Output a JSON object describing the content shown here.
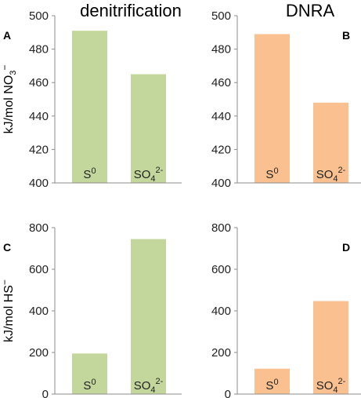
{
  "chart_data": [
    {
      "panel": "A",
      "title": "denitrification",
      "type": "bar",
      "categories": [
        "S0",
        "SO42-"
      ],
      "values": [
        491,
        465
      ],
      "ylim": [
        400,
        500
      ],
      "yticks": [
        400,
        420,
        440,
        460,
        480,
        500
      ],
      "ylabel": "kJ/mol NO3−",
      "color": "#c3d69b",
      "grid": false
    },
    {
      "panel": "B",
      "title": "DNRA",
      "type": "bar",
      "categories": [
        "S0",
        "SO42-"
      ],
      "values": [
        489,
        448
      ],
      "ylim": [
        400,
        500
      ],
      "yticks": [
        400,
        420,
        440,
        460,
        480,
        500
      ],
      "ylabel": "",
      "color": "#fac090",
      "grid": false
    },
    {
      "panel": "C",
      "title": "",
      "type": "bar",
      "categories": [
        "S0",
        "SO42-"
      ],
      "values": [
        195,
        745
      ],
      "ylim": [
        0,
        800
      ],
      "yticks": [
        0,
        200,
        400,
        600,
        800
      ],
      "ylabel": "kJ/mol HS−",
      "color": "#c3d69b",
      "grid": false
    },
    {
      "panel": "D",
      "title": "",
      "type": "bar",
      "categories": [
        "S0",
        "SO42-"
      ],
      "values": [
        122,
        447
      ],
      "ylim": [
        0,
        800
      ],
      "yticks": [
        0,
        200,
        400,
        600,
        800
      ],
      "ylabel": "",
      "color": "#fac090",
      "grid": false
    }
  ]
}
